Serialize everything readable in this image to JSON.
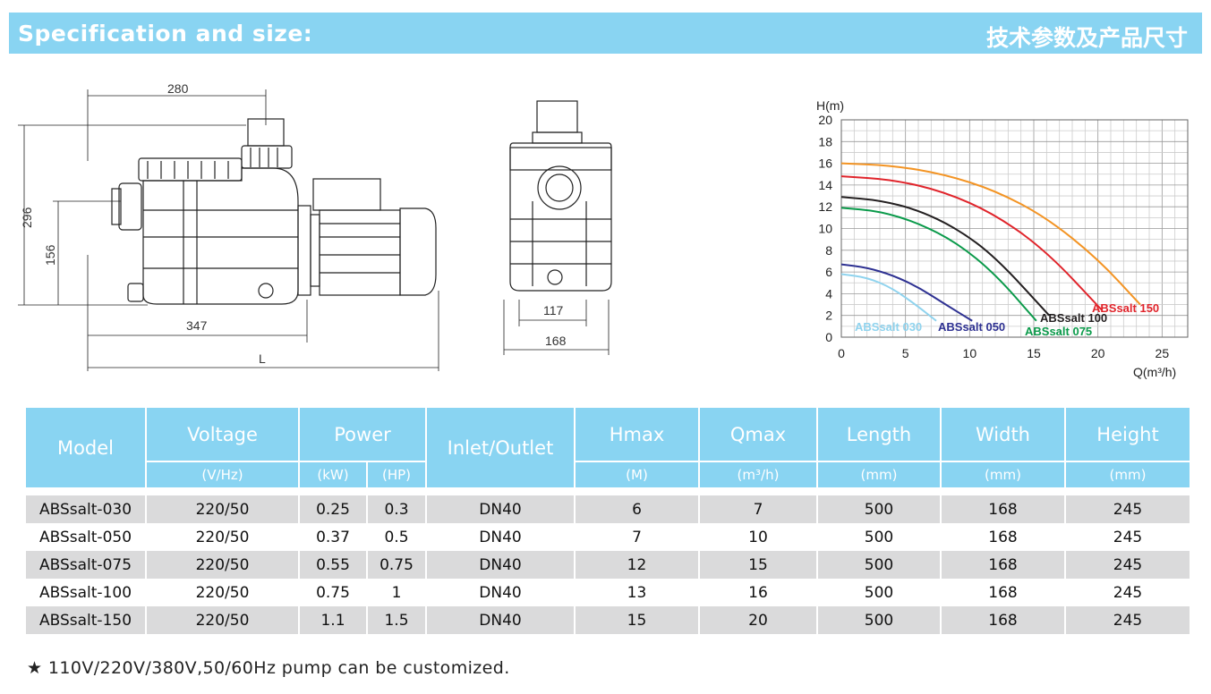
{
  "header": {
    "title_en": "Specification and size:",
    "title_zh": "技术参数及产品尺寸"
  },
  "dimensions": {
    "width_top": "280",
    "height_total": "296",
    "height_inlet": "156",
    "length_base": "347",
    "length_total": "L",
    "front_inlet": "117",
    "front_width": "168"
  },
  "chart_data": {
    "type": "line",
    "ylabel": "H(m)",
    "xlabel": "Q(m³/h)",
    "xlim": [
      0,
      27
    ],
    "ylim": [
      0,
      20
    ],
    "xticks": [
      0,
      5,
      10,
      15,
      20,
      25
    ],
    "yticks": [
      0,
      2,
      4,
      6,
      8,
      10,
      12,
      14,
      16,
      18,
      20
    ],
    "grid": true,
    "series": [
      {
        "name": "ABSsalt 030",
        "color": "#8fd3ee",
        "x": [
          0,
          2,
          4,
          6,
          7.4
        ],
        "y": [
          5.8,
          5.5,
          4.5,
          2.8,
          1.5
        ]
      },
      {
        "name": "ABSsalt 050",
        "color": "#2e3192",
        "x": [
          0,
          2,
          4,
          6,
          8,
          10.2
        ],
        "y": [
          6.7,
          6.4,
          5.7,
          4.6,
          3.1,
          1.5
        ]
      },
      {
        "name": "ABSsalt 075",
        "color": "#0a9a4a",
        "x": [
          0,
          3,
          6,
          9,
          12,
          15.2
        ],
        "y": [
          11.9,
          11.6,
          10.5,
          8.7,
          5.8,
          1.5
        ]
      },
      {
        "name": "ABSsalt 100",
        "color": "#231f20",
        "x": [
          0,
          3,
          6,
          9,
          12,
          16.2
        ],
        "y": [
          12.9,
          12.6,
          11.7,
          10.0,
          7.4,
          2.0
        ]
      },
      {
        "name": "ABSsalt 150",
        "color": "#e0242b",
        "x": [
          0,
          4,
          8,
          12,
          16,
          20.3
        ],
        "y": [
          14.8,
          14.5,
          13.4,
          11.3,
          7.9,
          2.5
        ]
      },
      {
        "name": "",
        "color": "#f39424",
        "x": [
          0,
          4,
          8,
          12,
          16,
          20,
          23.3
        ],
        "y": [
          16.0,
          15.8,
          15.0,
          13.5,
          11.0,
          7.2,
          3.0
        ]
      }
    ]
  },
  "table": {
    "headers": {
      "model": "Model",
      "voltage": "Voltage",
      "power": "Power",
      "inlet": "Inlet/Outlet",
      "hmax": "Hmax",
      "qmax": "Qmax",
      "length": "Length",
      "width": "Width",
      "height": "Height"
    },
    "units": {
      "voltage": "(V/Hz)",
      "kw": "(kW)",
      "hp": "(HP)",
      "hmax": "(M)",
      "qmax": "(m³/h)",
      "length": "(mm)",
      "width": "(mm)",
      "height": "(mm)"
    },
    "rows": [
      [
        "ABSsalt-030",
        "220/50",
        "0.25",
        "0.3",
        "DN40",
        "6",
        "7",
        "500",
        "168",
        "245"
      ],
      [
        "ABSsalt-050",
        "220/50",
        "0.37",
        "0.5",
        "DN40",
        "7",
        "10",
        "500",
        "168",
        "245"
      ],
      [
        "ABSsalt-075",
        "220/50",
        "0.55",
        "0.75",
        "DN40",
        "12",
        "15",
        "500",
        "168",
        "245"
      ],
      [
        "ABSsalt-100",
        "220/50",
        "0.75",
        "1",
        "DN40",
        "13",
        "16",
        "500",
        "168",
        "245"
      ],
      [
        "ABSsalt-150",
        "220/50",
        "1.1",
        "1.5",
        "DN40",
        "15",
        "20",
        "500",
        "168",
        "245"
      ]
    ]
  },
  "footnote": "★ 110V/220V/380V,50/60Hz pump can be customized."
}
